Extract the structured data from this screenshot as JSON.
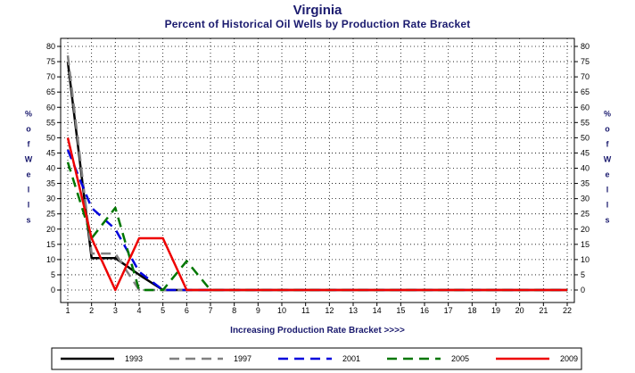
{
  "chart_data": {
    "type": "line",
    "title": "Virginia",
    "subtitle": "Percent of Historical Oil Wells by Production Rate Bracket",
    "xlabel": "Increasing Production Rate Bracket >>>>",
    "ylabel": "% of Wells",
    "ylabel_chars": [
      "%",
      "o",
      "f",
      "W",
      "e",
      "l",
      "l",
      "s"
    ],
    "x": [
      1,
      2,
      3,
      4,
      5,
      6,
      7,
      8,
      9,
      10,
      11,
      12,
      13,
      14,
      15,
      16,
      17,
      18,
      19,
      20,
      21,
      22
    ],
    "xlim": [
      1,
      22
    ],
    "ylim": [
      0,
      80
    ],
    "yticks": [
      0,
      5,
      10,
      15,
      20,
      25,
      30,
      35,
      40,
      45,
      50,
      55,
      60,
      65,
      70,
      75,
      80
    ],
    "grid": true,
    "legend_position": "bottom",
    "series": [
      {
        "name": "1993",
        "color": "#000000",
        "dash": "solid",
        "values": [
          75,
          10.5,
          10.5,
          5,
          0,
          0,
          0,
          0,
          0,
          0,
          0,
          0,
          0,
          0,
          0,
          0,
          0,
          0,
          0,
          0,
          0,
          0
        ]
      },
      {
        "name": "1997",
        "color": "#808080",
        "dash": "dashed",
        "values": [
          77,
          12,
          12,
          0,
          0,
          0,
          0,
          0,
          0,
          0,
          0,
          0,
          0,
          0,
          0,
          0,
          0,
          0,
          0,
          0,
          0,
          0
        ]
      },
      {
        "name": "2001",
        "color": "#0000dd",
        "dash": "dashed",
        "values": [
          46,
          27,
          20,
          6,
          0,
          0,
          0,
          0,
          0,
          0,
          0,
          0,
          0,
          0,
          0,
          0,
          0,
          0,
          0,
          0,
          0,
          0
        ]
      },
      {
        "name": "2005",
        "color": "#007700",
        "dash": "dashed",
        "values": [
          42,
          17,
          27,
          0,
          0,
          9.5,
          0,
          0,
          0,
          0,
          0,
          0,
          0,
          0,
          0,
          0,
          0,
          0,
          0,
          0,
          0,
          0
        ]
      },
      {
        "name": "2009",
        "color": "#ee0000",
        "dash": "solid",
        "values": [
          50,
          17,
          0,
          17,
          17,
          0,
          0,
          0,
          0,
          0,
          0,
          0,
          0,
          0,
          0,
          0,
          0,
          0,
          0,
          0,
          0,
          0
        ]
      }
    ]
  }
}
